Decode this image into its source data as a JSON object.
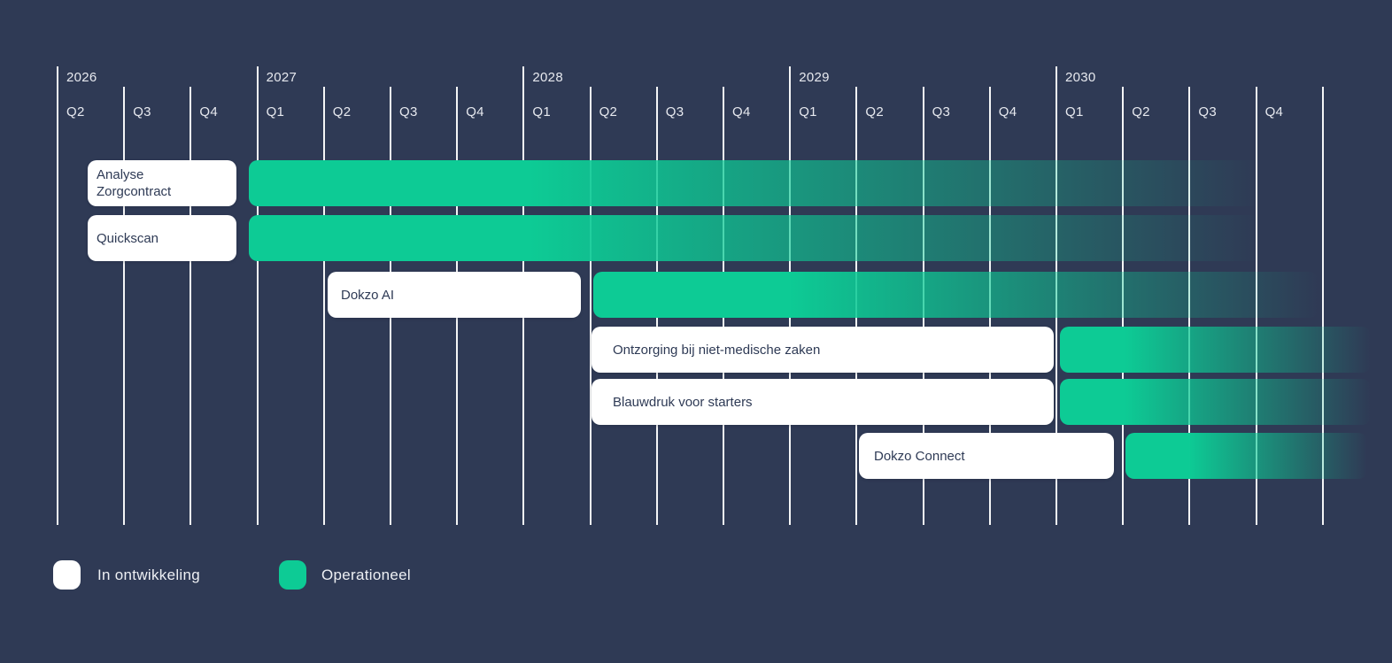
{
  "colors": {
    "background": "#2f3a55",
    "operational_green": "#0dcb95",
    "development_white": "#ffffff",
    "axis_text": "#e7e9ef",
    "label_text": "#2e3a55",
    "gridline": "#ffffff"
  },
  "chart_data": {
    "type": "gantt",
    "title": "",
    "timeline": {
      "unit": "quarter",
      "years": [
        {
          "label": "2026",
          "quarters": [
            "Q2",
            "Q3",
            "Q4"
          ]
        },
        {
          "label": "2027",
          "quarters": [
            "Q1",
            "Q2",
            "Q3",
            "Q4"
          ]
        },
        {
          "label": "2028",
          "quarters": [
            "Q1",
            "Q2",
            "Q3",
            "Q4"
          ]
        },
        {
          "label": "2029",
          "quarters": [
            "Q1",
            "Q2",
            "Q3",
            "Q4"
          ]
        },
        {
          "label": "2030",
          "quarters": [
            "Q1",
            "Q2",
            "Q3",
            "Q4"
          ]
        }
      ]
    },
    "tasks": [
      {
        "name": "Analyse Zorgcontract",
        "label_lines": [
          "Analyse",
          "Zorgcontract"
        ],
        "status": "operationeel-vanaf-2027",
        "bar": {
          "start_q": 2.88,
          "solid_until_q": 7.1,
          "fade_zero_q": 18.05,
          "end_q": 18.95
        }
      },
      {
        "name": "Quickscan",
        "label_lines": [
          "Quickscan"
        ],
        "status": "operationeel-vanaf-2027",
        "bar": {
          "start_q": 2.88,
          "solid_until_q": 7.1,
          "fade_zero_q": 18.05,
          "end_q": 18.95
        }
      },
      {
        "name": "Dokzo AI",
        "label_lines": [
          "Dokzo AI"
        ],
        "status": "operationeel-vanaf-2028-q2",
        "bar": {
          "start_q": 8.06,
          "solid_until_q": 11.0,
          "fade_zero_q": 18.95,
          "end_q": 18.95
        }
      },
      {
        "name": "Ontzorging bij niet-medische zaken",
        "label_lines": [
          "Ontzorging bij niet-medische zaken"
        ],
        "status": "operationeel-vanaf-2030-q1",
        "bar": {
          "start_q": 15.07,
          "solid_until_q": 16.05,
          "fade_zero_q": 19.73,
          "end_q": 19.73
        }
      },
      {
        "name": "Blauwdruk voor starters",
        "label_lines": [
          "Blauwdruk voor starters"
        ],
        "status": "operationeel-vanaf-2030-q1",
        "bar": {
          "start_q": 15.07,
          "solid_until_q": 16.05,
          "fade_zero_q": 19.73,
          "end_q": 19.73
        }
      },
      {
        "name": "Dokzo Connect",
        "label_lines": [
          "Dokzo Connect"
        ],
        "status": "operationeel-vanaf-2030-q2",
        "bar": {
          "start_q": 16.05,
          "solid_until_q": 17.0,
          "fade_zero_q": 19.68,
          "end_q": 19.68
        }
      }
    ]
  },
  "legend": [
    {
      "label": "In ontwikkeling",
      "color": "#ffffff"
    },
    {
      "label": "Operationeel",
      "color": "#0dcb95"
    }
  ]
}
